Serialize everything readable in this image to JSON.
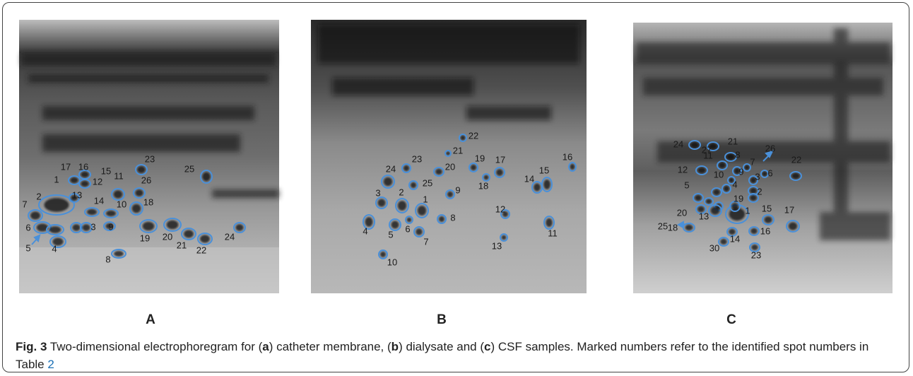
{
  "figure": {
    "panels": [
      {
        "label": "A",
        "spots": [
          "17",
          "16",
          "15",
          "1",
          "12",
          "11",
          "23",
          "26",
          "25",
          "13",
          "14",
          "10",
          "18",
          "2",
          "7",
          "6",
          "9",
          "3",
          "19",
          "20",
          "21",
          "22",
          "24",
          "5",
          "4",
          "8"
        ]
      },
      {
        "label": "B",
        "spots": [
          "22",
          "21",
          "23",
          "24",
          "19",
          "17",
          "20",
          "25",
          "18",
          "16",
          "15",
          "14",
          "9",
          "3",
          "2",
          "1",
          "8",
          "12",
          "4",
          "5",
          "6",
          "7",
          "11",
          "13",
          "10"
        ]
      },
      {
        "label": "C",
        "spots": [
          "24",
          "27",
          "21",
          "26",
          "11",
          "8",
          "7",
          "22",
          "12",
          "10",
          "9",
          "3",
          "6",
          "5",
          "4",
          "2",
          "20",
          "19",
          "25",
          "13",
          "1",
          "15",
          "17",
          "18",
          "14",
          "16",
          "30",
          "23"
        ]
      }
    ],
    "caption": {
      "segments": [
        "Fig. 3",
        " Two-dimensional electrophoregram for (",
        "a",
        ") catheter membrane, (",
        "b",
        ") dialysate and (",
        "c",
        ") CSF samples. Marked numbers refer to the identified spot numbers in Table ",
        "2"
      ]
    }
  }
}
